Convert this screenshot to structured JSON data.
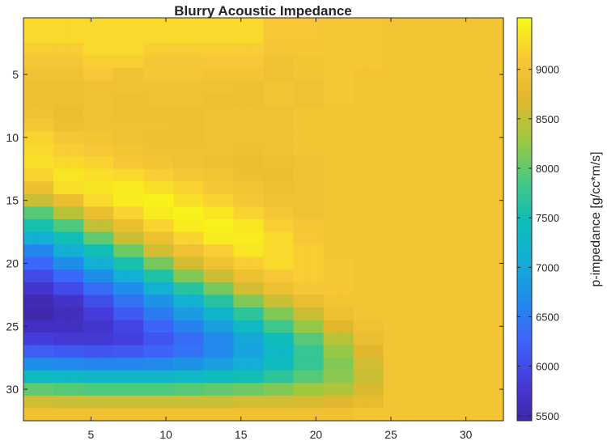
{
  "chart_data": {
    "type": "heatmap",
    "title": "Blurry Acoustic Impedance",
    "xlabel": "",
    "ylabel": "",
    "colorbar_label": "p-impedance [g/cc*m/s]",
    "colormap": "parula",
    "x_range": [
      1,
      32
    ],
    "y_range": [
      1,
      32
    ],
    "y_direction": "reversed",
    "x_ticks": [
      5,
      10,
      15,
      20,
      25,
      30
    ],
    "y_ticks": [
      5,
      10,
      15,
      20,
      25,
      30
    ],
    "clim": [
      5450,
      9520
    ],
    "colorbar_ticks": [
      5500,
      6000,
      6500,
      7000,
      7500,
      8000,
      8500,
      9000
    ],
    "background_value": 9000,
    "grid": false,
    "colorbar_position": "right",
    "rows": [
      [
        9250,
        9250,
        9250,
        9250,
        9250,
        9250,
        9250,
        9250,
        9250,
        9250,
        9250,
        9250,
        9250,
        9250,
        9250,
        9250,
        9100,
        9100,
        9100,
        9100,
        9050,
        9050,
        9050,
        9050,
        9000,
        9000,
        9000,
        9000,
        9000,
        9000,
        9000,
        9000
      ],
      [
        9250,
        9250,
        9250,
        9250,
        9250,
        9250,
        9250,
        9250,
        9250,
        9250,
        9250,
        9250,
        9250,
        9250,
        9250,
        9250,
        9100,
        9100,
        9100,
        9100,
        9050,
        9050,
        9050,
        9050,
        9000,
        9000,
        9000,
        9000,
        9000,
        9000,
        9000,
        9000
      ],
      [
        9150,
        9150,
        9150,
        9150,
        9250,
        9250,
        9250,
        9250,
        9150,
        9150,
        9150,
        9150,
        9150,
        9150,
        9150,
        9150,
        9050,
        9050,
        9050,
        9050,
        9050,
        9050,
        9050,
        9050,
        9000,
        9000,
        9000,
        9000,
        9000,
        9000,
        9000,
        9000
      ],
      [
        9050,
        9050,
        9050,
        9050,
        9150,
        9150,
        9150,
        9150,
        9050,
        9050,
        9050,
        9050,
        9100,
        9100,
        9100,
        9100,
        8950,
        8950,
        9000,
        9000,
        9050,
        9050,
        9050,
        9050,
        9000,
        9000,
        9000,
        9000,
        9000,
        9000,
        9000,
        9000
      ],
      [
        8950,
        8950,
        8950,
        8950,
        9100,
        9100,
        8950,
        8950,
        9050,
        9050,
        9050,
        9050,
        9000,
        9000,
        9000,
        9000,
        8950,
        8950,
        9000,
        9000,
        9050,
        9050,
        9000,
        9000,
        9000,
        9000,
        9000,
        9000,
        9000,
        9000,
        9000,
        9000
      ],
      [
        8900,
        8900,
        8900,
        8900,
        8950,
        8950,
        8950,
        8950,
        8950,
        8950,
        8950,
        8950,
        8950,
        8950,
        8900,
        8900,
        9000,
        9000,
        8950,
        8950,
        9050,
        9050,
        9000,
        9000,
        9000,
        9000,
        9000,
        9000,
        9000,
        9000,
        9000,
        9000
      ],
      [
        8900,
        8900,
        8900,
        8900,
        8950,
        8950,
        8900,
        8900,
        8950,
        8950,
        8950,
        8950,
        8900,
        8900,
        8900,
        8900,
        9000,
        9000,
        8950,
        8950,
        9050,
        9050,
        9000,
        9000,
        9000,
        9000,
        9000,
        9000,
        9000,
        9000,
        9000,
        9000
      ],
      [
        8950,
        8950,
        8850,
        8850,
        8950,
        8950,
        8900,
        8900,
        8900,
        8900,
        8900,
        8900,
        8950,
        8950,
        8950,
        8950,
        8950,
        8950,
        9000,
        9000,
        9000,
        9000,
        9000,
        9000,
        9000,
        9000,
        9000,
        9000,
        9000,
        9000,
        9000,
        9000
      ],
      [
        9050,
        9050,
        8900,
        8900,
        8950,
        8950,
        8950,
        8950,
        8950,
        8950,
        8900,
        8900,
        8950,
        8950,
        8950,
        8950,
        8950,
        8950,
        9000,
        9000,
        9000,
        9000,
        9000,
        9000,
        9000,
        9000,
        9000,
        9000,
        9000,
        9000,
        9000,
        9000
      ],
      [
        9200,
        9200,
        9050,
        9050,
        9000,
        9000,
        8950,
        8950,
        8900,
        8900,
        8900,
        8900,
        8950,
        8950,
        8950,
        8950,
        8950,
        8950,
        9000,
        9000,
        9000,
        9000,
        9000,
        9000,
        9000,
        9000,
        9000,
        9000,
        9000,
        9000,
        9000,
        9000
      ],
      [
        9250,
        9250,
        9150,
        9150,
        9100,
        9100,
        9000,
        9000,
        8950,
        8950,
        8950,
        8950,
        8950,
        8950,
        8900,
        8900,
        8950,
        8950,
        9000,
        9000,
        9000,
        9000,
        9000,
        9000,
        9000,
        9000,
        9000,
        9000,
        9000,
        9000,
        9000,
        9000
      ],
      [
        9300,
        9300,
        9250,
        9250,
        9200,
        9200,
        9100,
        9100,
        9000,
        9000,
        8950,
        8950,
        8900,
        8900,
        8850,
        8850,
        8900,
        8900,
        8950,
        8950,
        9000,
        9000,
        9000,
        9000,
        9000,
        9000,
        9000,
        9000,
        9000,
        9000,
        9000,
        9000
      ],
      [
        9200,
        9200,
        9350,
        9350,
        9300,
        9300,
        9250,
        9250,
        9150,
        9150,
        9050,
        9050,
        9000,
        9000,
        8900,
        8900,
        8850,
        8850,
        8950,
        8950,
        9000,
        9000,
        9000,
        9000,
        9000,
        9000,
        9000,
        9000,
        9000,
        9000,
        9000,
        9000
      ],
      [
        8900,
        8900,
        9300,
        9300,
        9350,
        9350,
        9400,
        9400,
        9300,
        9300,
        9200,
        9200,
        9050,
        9050,
        9000,
        9000,
        8900,
        8900,
        8950,
        8950,
        9000,
        9000,
        9000,
        9000,
        9000,
        9000,
        9000,
        9000,
        9000,
        9000,
        9000,
        9000
      ],
      [
        8550,
        8550,
        8850,
        8850,
        9250,
        9250,
        9400,
        9400,
        9450,
        9450,
        9300,
        9300,
        9200,
        9200,
        9050,
        9050,
        8950,
        8950,
        8950,
        8950,
        9000,
        9000,
        9000,
        9000,
        9000,
        9000,
        9000,
        9000,
        9000,
        9000,
        9000,
        9000
      ],
      [
        7950,
        7950,
        8450,
        8450,
        8850,
        8850,
        9200,
        9200,
        9400,
        9400,
        9450,
        9450,
        9350,
        9350,
        9200,
        9200,
        9050,
        9050,
        8950,
        8950,
        9000,
        9000,
        9000,
        9000,
        9000,
        9000,
        9000,
        9000,
        9000,
        9000,
        9000,
        9000
      ],
      [
        7550,
        7550,
        7900,
        7900,
        8500,
        8500,
        8850,
        8850,
        9200,
        9200,
        9400,
        9400,
        9450,
        9450,
        9350,
        9350,
        9150,
        9150,
        9050,
        9050,
        9000,
        9000,
        9000,
        9000,
        9000,
        9000,
        9000,
        9000,
        9000,
        9000,
        9000,
        9000
      ],
      [
        7100,
        7100,
        7500,
        7500,
        8000,
        8000,
        8550,
        8550,
        8900,
        8900,
        9200,
        9200,
        9400,
        9400,
        9400,
        9400,
        9250,
        9250,
        9100,
        9100,
        9000,
        9000,
        9000,
        9000,
        9000,
        9000,
        9000,
        9000,
        9000,
        9000,
        9000,
        9000
      ],
      [
        6600,
        6600,
        7100,
        7100,
        7500,
        7500,
        8050,
        8050,
        8600,
        8600,
        8950,
        8950,
        9150,
        9150,
        9350,
        9350,
        9250,
        9250,
        9150,
        9150,
        9000,
        9000,
        9000,
        9000,
        9000,
        9000,
        9000,
        9000,
        9000,
        9000,
        9000,
        9000
      ],
      [
        6300,
        6300,
        6700,
        6700,
        7100,
        7100,
        7550,
        7550,
        8100,
        8100,
        8600,
        8600,
        8950,
        8950,
        9150,
        9150,
        9250,
        9250,
        9150,
        9150,
        9050,
        9050,
        9000,
        9000,
        9000,
        9000,
        9000,
        9000,
        9000,
        9000,
        9000,
        9000
      ],
      [
        6000,
        6000,
        6300,
        6300,
        6700,
        6700,
        7100,
        7100,
        7600,
        7600,
        8150,
        8150,
        8550,
        8550,
        8900,
        8900,
        9100,
        9100,
        9150,
        9150,
        9050,
        9050,
        9000,
        9000,
        9000,
        9000,
        9000,
        9000,
        9000,
        9000,
        9000,
        9000
      ],
      [
        5750,
        5750,
        6000,
        6000,
        6350,
        6350,
        6700,
        6700,
        7150,
        7150,
        7650,
        7650,
        8100,
        8100,
        8600,
        8600,
        8900,
        8900,
        9050,
        9050,
        9050,
        9050,
        9000,
        9000,
        9000,
        9000,
        9000,
        9000,
        9000,
        9000,
        9000,
        9000
      ],
      [
        5550,
        5550,
        5700,
        5700,
        6050,
        6050,
        6400,
        6400,
        6750,
        6750,
        7150,
        7150,
        7650,
        7650,
        8150,
        8150,
        8550,
        8550,
        8850,
        8850,
        9000,
        9000,
        9000,
        9000,
        9000,
        9000,
        9000,
        9000,
        9000,
        9000,
        9000,
        9000
      ],
      [
        5500,
        5500,
        5600,
        5600,
        5850,
        5850,
        6150,
        6150,
        6500,
        6500,
        6850,
        6850,
        7250,
        7250,
        7700,
        7700,
        8150,
        8150,
        8550,
        8550,
        8900,
        8900,
        9000,
        9000,
        9000,
        9000,
        9000,
        9000,
        9000,
        9000,
        9000,
        9000
      ],
      [
        5650,
        5650,
        5650,
        5650,
        5750,
        5750,
        5950,
        5950,
        6250,
        6250,
        6550,
        6550,
        6900,
        6900,
        7350,
        7350,
        7800,
        7800,
        8250,
        8250,
        8700,
        8700,
        8950,
        8950,
        9000,
        9000,
        9000,
        9000,
        9000,
        9000,
        9000,
        9000
      ],
      [
        5850,
        5850,
        5800,
        5800,
        5800,
        5800,
        5900,
        5900,
        6100,
        6100,
        6350,
        6350,
        6650,
        6650,
        7000,
        7000,
        7450,
        7450,
        7950,
        7950,
        8450,
        8450,
        8850,
        8850,
        9000,
        9000,
        9000,
        9000,
        9000,
        9000,
        9000,
        9000
      ],
      [
        6200,
        6200,
        6150,
        6150,
        6100,
        6100,
        6150,
        6150,
        6250,
        6250,
        6400,
        6400,
        6650,
        6650,
        6950,
        6950,
        7300,
        7300,
        7750,
        7750,
        8250,
        8250,
        8700,
        8700,
        9000,
        9000,
        9000,
        9000,
        9000,
        9000,
        9000,
        9000
      ],
      [
        6700,
        6700,
        6650,
        6650,
        6600,
        6600,
        6600,
        6600,
        6650,
        6650,
        6750,
        6750,
        6900,
        6900,
        7100,
        7100,
        7400,
        7400,
        7750,
        7750,
        8150,
        8150,
        8600,
        8600,
        9000,
        9000,
        9000,
        9000,
        9000,
        9000,
        9000,
        9000
      ],
      [
        7350,
        7350,
        7300,
        7300,
        7250,
        7250,
        7250,
        7250,
        7250,
        7250,
        7300,
        7300,
        7400,
        7400,
        7500,
        7500,
        7700,
        7700,
        7950,
        7950,
        8200,
        8200,
        8550,
        8550,
        9000,
        9000,
        9000,
        9000,
        9000,
        9000,
        9000,
        9000
      ],
      [
        8000,
        8000,
        7950,
        7950,
        7900,
        7900,
        7900,
        7900,
        7900,
        7900,
        7950,
        7950,
        8000,
        8000,
        8050,
        8050,
        8150,
        8150,
        8300,
        8300,
        8400,
        8400,
        8650,
        8650,
        9000,
        9000,
        9000,
        9000,
        9000,
        9000,
        9000,
        9000
      ],
      [
        8600,
        8600,
        8550,
        8550,
        8550,
        8550,
        8550,
        8550,
        8550,
        8550,
        8550,
        8550,
        8550,
        8550,
        8600,
        8600,
        8600,
        8600,
        8650,
        8650,
        8700,
        8700,
        8800,
        8800,
        9000,
        9000,
        9000,
        9000,
        9000,
        9000,
        9000,
        9000
      ],
      [
        8950,
        8950,
        8950,
        8950,
        8950,
        8950,
        8950,
        8950,
        8950,
        8950,
        8950,
        8950,
        8950,
        8950,
        8950,
        8950,
        8950,
        8950,
        8950,
        8950,
        8950,
        8950,
        9000,
        9000,
        9000,
        9000,
        9000,
        9000,
        9000,
        9000,
        9000,
        9000
      ]
    ]
  }
}
